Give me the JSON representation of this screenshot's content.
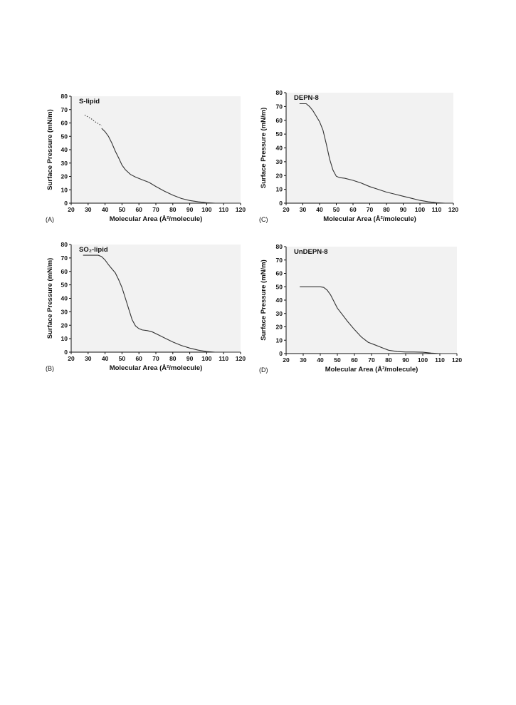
{
  "chart_data": [
    {
      "type": "line",
      "panel_label": "(A)",
      "title": "S-lipid",
      "xlabel": "Molecular Area (Å²/molecule)",
      "ylabel": "Surface Pressure (mN/m)",
      "xlim": [
        20,
        120
      ],
      "ylim": [
        0,
        80
      ],
      "xticks": [
        20,
        30,
        40,
        50,
        60,
        70,
        80,
        90,
        100,
        110,
        120
      ],
      "yticks": [
        0,
        10,
        20,
        30,
        40,
        50,
        60,
        70,
        80
      ],
      "series": [
        {
          "style": "dotted",
          "x": [
            28,
            30,
            32,
            34,
            36,
            38
          ],
          "y": [
            66,
            64.5,
            63,
            61,
            59.5,
            58
          ]
        },
        {
          "style": "solid",
          "x": [
            38,
            40,
            42,
            44,
            46,
            48,
            50,
            52,
            55,
            58,
            62,
            66,
            70,
            75,
            80,
            85,
            90,
            95,
            100,
            105,
            110,
            115,
            120
          ],
          "y": [
            56,
            53.5,
            50,
            45,
            39,
            34,
            28.5,
            25,
            21.5,
            19.5,
            17.5,
            15.5,
            12.5,
            9,
            6,
            3.5,
            2,
            1,
            0.3,
            0,
            0,
            0,
            0
          ]
        }
      ]
    },
    {
      "type": "line",
      "panel_label": "(C)",
      "title": "DEPN-8",
      "xlabel": "Molecular Area (Å²/molecule)",
      "ylabel": "Surface Pressure (mN/m)",
      "xlim": [
        20,
        120
      ],
      "ylim": [
        0,
        80
      ],
      "xticks": [
        20,
        30,
        40,
        50,
        60,
        70,
        80,
        90,
        100,
        110,
        120
      ],
      "yticks": [
        0,
        10,
        20,
        30,
        40,
        50,
        60,
        70,
        80
      ],
      "series": [
        {
          "style": "solid",
          "x": [
            28,
            32,
            34,
            36,
            38,
            40,
            42,
            44,
            46,
            48,
            50,
            52,
            55,
            60,
            65,
            70,
            75,
            80,
            85,
            90,
            95,
            100,
            105,
            110,
            115,
            120
          ],
          "y": [
            72,
            72,
            70,
            67,
            63,
            59,
            53,
            43,
            32,
            24,
            19.5,
            18.5,
            18,
            16.5,
            14.5,
            12,
            10,
            8,
            6.5,
            5,
            3.5,
            2,
            1,
            0.3,
            0,
            0
          ]
        }
      ]
    },
    {
      "type": "line",
      "panel_label": "(B)",
      "title": "SO₂-lipid",
      "xlabel": "Molecular Area (Å²/molecule)",
      "ylabel": "Surface Pressure (mN/m)",
      "xlim": [
        20,
        120
      ],
      "ylim": [
        0,
        80
      ],
      "xticks": [
        20,
        30,
        40,
        50,
        60,
        70,
        80,
        90,
        100,
        110,
        120
      ],
      "yticks": [
        0,
        10,
        20,
        30,
        40,
        50,
        60,
        70,
        80
      ],
      "series": [
        {
          "style": "solid",
          "x": [
            27,
            36,
            38,
            40,
            42,
            44,
            46,
            48,
            50,
            52,
            54,
            56,
            58,
            60,
            62,
            65,
            68,
            72,
            76,
            80,
            85,
            90,
            95,
            100,
            105,
            110,
            115,
            120
          ],
          "y": [
            72,
            72,
            71,
            68.5,
            65,
            62,
            59,
            54,
            48,
            40,
            32,
            24,
            19.5,
            17.5,
            16.5,
            16,
            15,
            12.5,
            10,
            7.5,
            5,
            3,
            1.5,
            0.4,
            0,
            0,
            0,
            0
          ]
        }
      ]
    },
    {
      "type": "line",
      "panel_label": "(D)",
      "title": "UnDEPN-8",
      "xlabel": "Molecular Area (Å²/molecule)",
      "ylabel": "Surface Pressure (mN/m)",
      "xlim": [
        20,
        120
      ],
      "ylim": [
        0,
        80
      ],
      "xticks": [
        20,
        30,
        40,
        50,
        60,
        70,
        80,
        90,
        100,
        110,
        120
      ],
      "yticks": [
        0,
        10,
        20,
        30,
        40,
        50,
        60,
        70,
        80
      ],
      "series": [
        {
          "style": "solid",
          "x": [
            28,
            40,
            42,
            44,
            46,
            48,
            50,
            53,
            56,
            60,
            64,
            68,
            72,
            76,
            80,
            85,
            90,
            95,
            100,
            105,
            110,
            115,
            120
          ],
          "y": [
            50,
            50,
            49.5,
            47.5,
            44,
            39,
            34,
            29,
            24,
            18,
            12.5,
            8.5,
            6.5,
            4.5,
            2.5,
            1.5,
            1.2,
            1.2,
            1,
            0.4,
            0,
            0,
            0
          ]
        }
      ]
    }
  ]
}
